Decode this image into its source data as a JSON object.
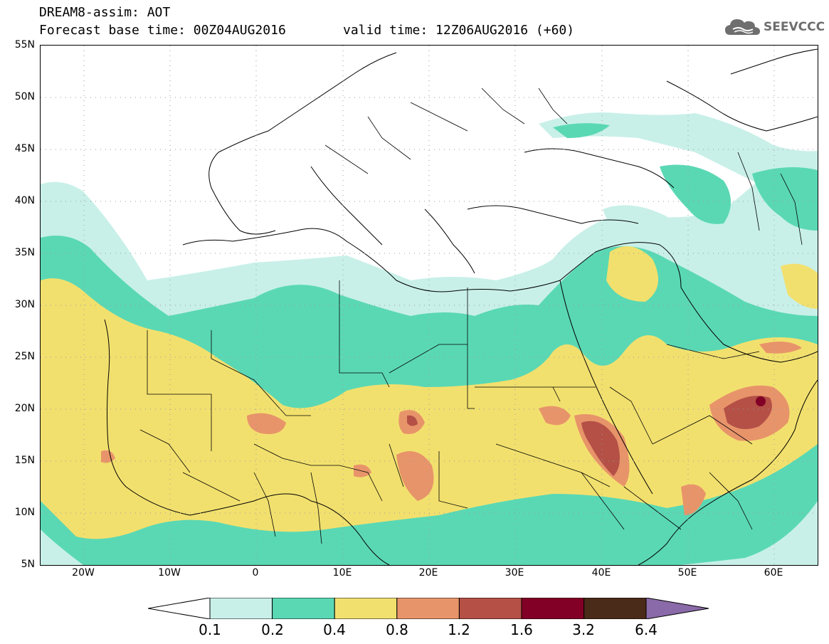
{
  "header": {
    "line1": "DREAM8-assim: AOT",
    "line2": "Forecast base time: 00Z04AUG2016",
    "valid": "valid time: 12Z06AUG2016 (+60)"
  },
  "logo": {
    "text": "SEEVCCC",
    "icon": "cloud-icon"
  },
  "axes": {
    "lat_labels": [
      "55N",
      "50N",
      "45N",
      "40N",
      "35N",
      "30N",
      "25N",
      "20N",
      "15N",
      "10N",
      "5N"
    ],
    "lon_labels": [
      "20W",
      "10W",
      "0",
      "10E",
      "20E",
      "30E",
      "40E",
      "50E",
      "60E"
    ],
    "lat_range": [
      5,
      55
    ],
    "lon_range": [
      -25,
      65
    ]
  },
  "colorbar": {
    "labels": [
      "0.1",
      "0.2",
      "0.4",
      "0.8",
      "1.2",
      "1.6",
      "3.2",
      "6.4"
    ],
    "colors": [
      "#c8f0e8",
      "#5ad8b4",
      "#f2e06e",
      "#e8946a",
      "#b45046",
      "#820026",
      "#4a2a18"
    ],
    "under_color": "#ffffff",
    "over_color": "#8a6aa8"
  },
  "legend_colors": {
    "bg": "#ffffff",
    "aot_01_02": "#c8f0e8",
    "aot_02_04": "#5ad8b4",
    "aot_04_08": "#f2e06e",
    "aot_08_12": "#e8946a",
    "aot_12_16": "#b45046",
    "aot_16_32": "#820026"
  }
}
